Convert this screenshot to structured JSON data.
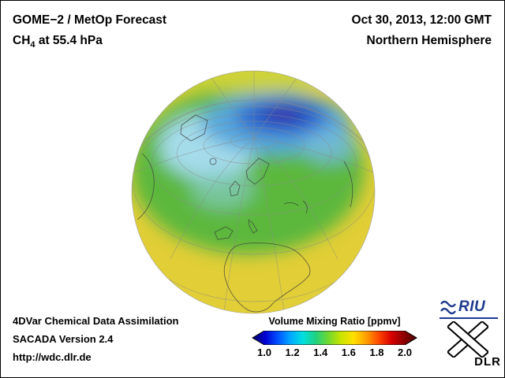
{
  "header": {
    "product": "GOME−2 / MetOp Forecast",
    "species_prefix": "CH",
    "species_subscript": "4",
    "species_suffix": " at 55.4 hPa",
    "datetime": "Oct 30, 2013, 12:00 GMT",
    "hemisphere": "Northern Hemisphere"
  },
  "footer": {
    "assimilation": "4DVar Chemical Data Assimilation",
    "version": "SACADA Version 2.4",
    "url": "http://wdc.dlr.de"
  },
  "colorbar": {
    "title": "Volume Mixing Ratio [ppmv]",
    "ticks": [
      "1.0",
      "1.2",
      "1.4",
      "1.6",
      "1.8",
      "2.0"
    ],
    "colors": [
      "#000066",
      "#0000d0",
      "#0050ff",
      "#00a8ff",
      "#00e0e0",
      "#20d080",
      "#70d830",
      "#c8e400",
      "#ffe000",
      "#ffa000",
      "#ff4800",
      "#d80000",
      "#8c0000",
      "#4a0000"
    ]
  },
  "logos": {
    "riu": "RIU",
    "dlr": "DLR"
  },
  "colors": {
    "riu_blue": "#1e3a8f",
    "map_yellow": "#e2ce36",
    "map_green": "#5cb83e",
    "map_light_blue": "#a5dcea",
    "map_deep_blue": "#2430b0",
    "map_vortex_purple": "#55209a"
  },
  "chart_data": {
    "type": "heatmap",
    "title": "GOME−2 / MetOp Forecast CH4 at 55.4 hPa",
    "subtitle": "Northern Hemisphere, Oct 30, 2013, 12:00 GMT",
    "variable": "CH4 volume mixing ratio",
    "units": "ppmv",
    "pressure_level_hPa": 55.4,
    "projection": "orthographic globe, Northern Hemisphere view",
    "colorbar": {
      "label": "Volume Mixing Ratio [ppmv]",
      "range": [
        1.0,
        2.0
      ],
      "ticks": [
        1.0,
        1.2,
        1.4,
        1.6,
        1.8,
        2.0
      ],
      "orientation": "horizontal",
      "position": "bottom-right",
      "arrow_ends": true
    },
    "features": [
      {
        "region": "Arctic / northern Siberia polar vortex core",
        "approx_value_ppmv": 1.05,
        "color": "dark blue with purple core"
      },
      {
        "region": "Arctic Ocean band toward eastern Siberia",
        "approx_value_ppmv": 1.2,
        "color": "blue"
      },
      {
        "region": "Greenland / northeastern Canada / North Atlantic",
        "approx_value_ppmv": 1.3,
        "color": "light blue / cyan"
      },
      {
        "region": "Northern and central Europe",
        "approx_value_ppmv": 1.45,
        "color": "green"
      },
      {
        "region": "Mid-latitude ring (southern Europe, central Asia)",
        "approx_value_ppmv": 1.5,
        "color": "yellow-green"
      },
      {
        "region": "Subtropics / Africa / globe rim",
        "approx_value_ppmv": 1.6,
        "color": "yellow"
      }
    ]
  }
}
